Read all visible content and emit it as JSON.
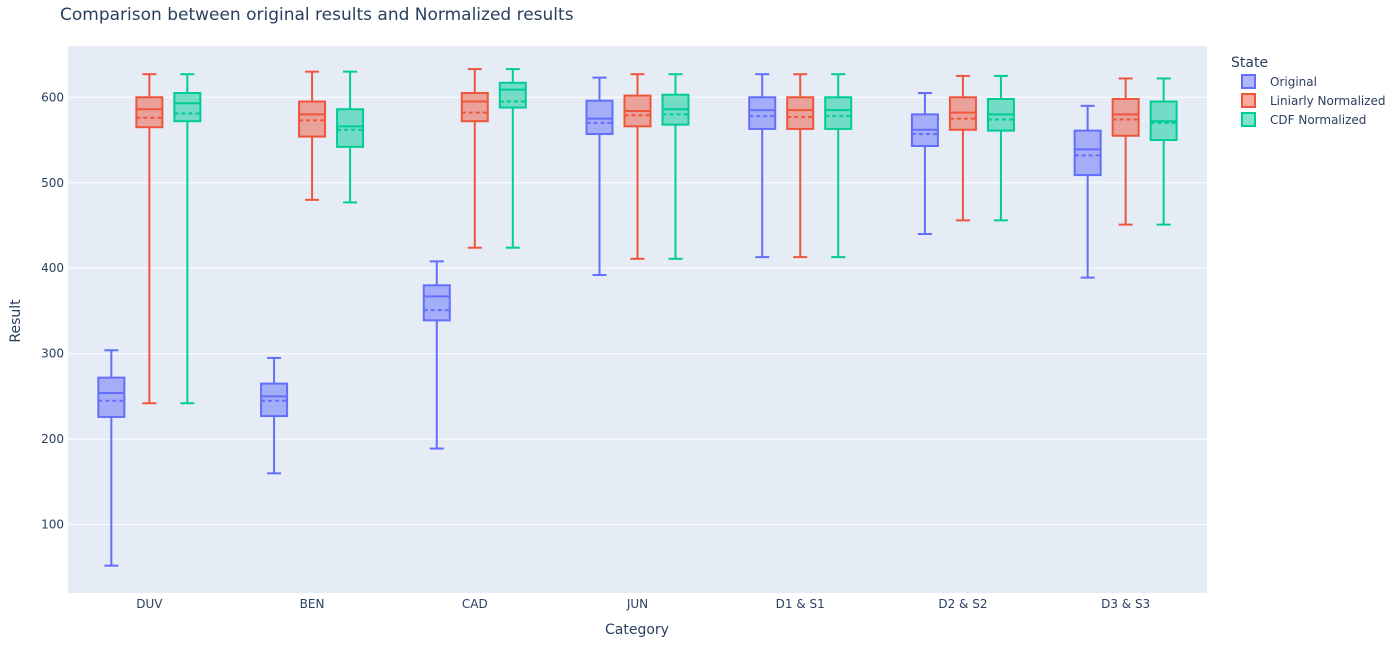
{
  "chart_data": {
    "type": "box",
    "title": "Comparison between original results and Normalized results",
    "xlabel": "Category",
    "ylabel": "Result",
    "ylim": [
      20,
      660
    ],
    "yticks": [
      100,
      200,
      300,
      400,
      500,
      600
    ],
    "grid": true,
    "legend_placement": "top-right",
    "legend_title": "State",
    "categories": [
      "DUV",
      "BEN",
      "CAD",
      "JUN",
      "D1 & S1",
      "D2 & S2",
      "D3 & S3"
    ],
    "series": [
      {
        "name": "Original",
        "color": "#636efa",
        "boxes": [
          {
            "min": 52,
            "q1": 226,
            "median": 254,
            "mean": 245,
            "q3": 272,
            "max": 304
          },
          {
            "min": 160,
            "q1": 227,
            "median": 250,
            "mean": 245,
            "q3": 265,
            "max": 295
          },
          {
            "min": 189,
            "q1": 339,
            "median": 367,
            "mean": 351,
            "q3": 380,
            "max": 408
          },
          {
            "min": 392,
            "q1": 557,
            "median": 575,
            "mean": 570,
            "q3": 596,
            "max": 623
          },
          {
            "min": 413,
            "q1": 563,
            "median": 585,
            "mean": 578,
            "q3": 600,
            "max": 627
          },
          {
            "min": 440,
            "q1": 543,
            "median": 562,
            "mean": 557,
            "q3": 580,
            "max": 605
          },
          {
            "min": 389,
            "q1": 509,
            "median": 539,
            "mean": 532,
            "q3": 561,
            "max": 590
          }
        ]
      },
      {
        "name": "Liniarly Normalized",
        "color": "#ef553b",
        "boxes": [
          {
            "min": 242,
            "q1": 565,
            "median": 586,
            "mean": 576,
            "q3": 600,
            "max": 627
          },
          {
            "min": 480,
            "q1": 554,
            "median": 580,
            "mean": 573,
            "q3": 595,
            "max": 630
          },
          {
            "min": 424,
            "q1": 572,
            "median": 595,
            "mean": 582,
            "q3": 605,
            "max": 633
          },
          {
            "min": 411,
            "q1": 566,
            "median": 584,
            "mean": 579,
            "q3": 602,
            "max": 627
          },
          {
            "min": 413,
            "q1": 563,
            "median": 585,
            "mean": 577,
            "q3": 600,
            "max": 627
          },
          {
            "min": 456,
            "q1": 562,
            "median": 582,
            "mean": 575,
            "q3": 600,
            "max": 625
          },
          {
            "min": 451,
            "q1": 555,
            "median": 580,
            "mean": 574,
            "q3": 598,
            "max": 622
          }
        ]
      },
      {
        "name": "CDF Normalized",
        "color": "#00cc96",
        "boxes": [
          {
            "min": 242,
            "q1": 572,
            "median": 593,
            "mean": 581,
            "q3": 605,
            "max": 627
          },
          {
            "min": 477,
            "q1": 542,
            "median": 566,
            "mean": 562,
            "q3": 586,
            "max": 630
          },
          {
            "min": 424,
            "q1": 588,
            "median": 609,
            "mean": 595,
            "q3": 617,
            "max": 633
          },
          {
            "min": 411,
            "q1": 568,
            "median": 586,
            "mean": 580,
            "q3": 603,
            "max": 627
          },
          {
            "min": 413,
            "q1": 563,
            "median": 585,
            "mean": 578,
            "q3": 600,
            "max": 627
          },
          {
            "min": 456,
            "q1": 561,
            "median": 580,
            "mean": 574,
            "q3": 598,
            "max": 625
          },
          {
            "min": 451,
            "q1": 550,
            "median": 572,
            "mean": 570,
            "q3": 595,
            "max": 622
          }
        ]
      }
    ]
  }
}
